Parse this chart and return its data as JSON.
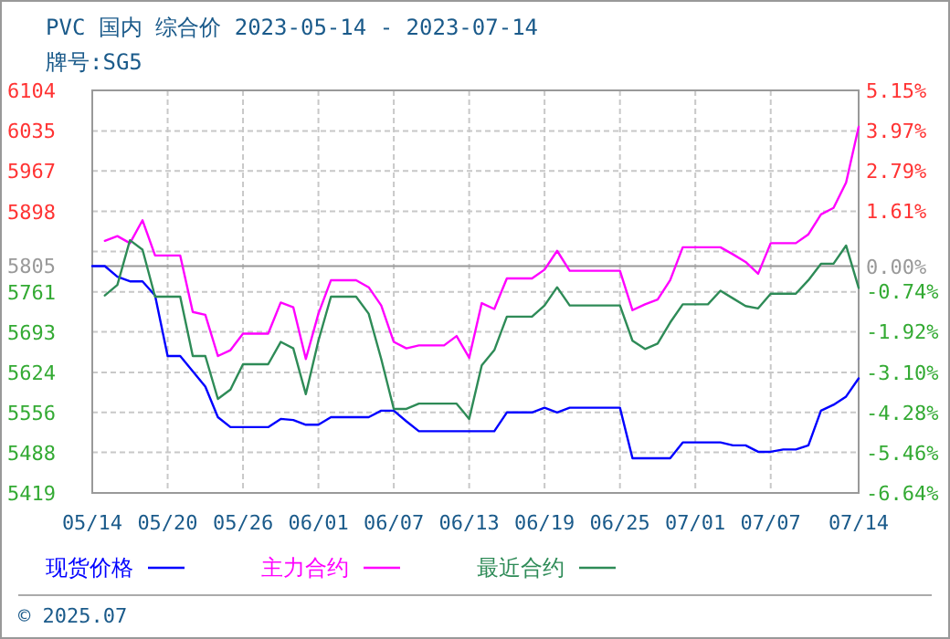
{
  "chart_data": {
    "type": "line",
    "title": "PVC 国内 综合价 2023-05-14 - 2023-07-14",
    "subtitle": "牌号:SG5",
    "xlim": [
      "2023-05-14",
      "2023-07-14"
    ],
    "xticks": [
      {
        "value": "2023-05-14",
        "label": "05/14"
      },
      {
        "value": "2023-05-20",
        "label": "05/20"
      },
      {
        "value": "2023-05-26",
        "label": "05/26"
      },
      {
        "value": "2023-06-01",
        "label": "06/01"
      },
      {
        "value": "2023-06-07",
        "label": "06/07"
      },
      {
        "value": "2023-06-13",
        "label": "06/13"
      },
      {
        "value": "2023-06-19",
        "label": "06/19"
      },
      {
        "value": "2023-06-25",
        "label": "06/25"
      },
      {
        "value": "2023-07-01",
        "label": "07/01"
      },
      {
        "value": "2023-07-07",
        "label": "07/07"
      },
      {
        "value": "2023-07-14",
        "label": "07/14"
      }
    ],
    "ylim": [
      5419,
      6104
    ],
    "yticks": [
      6104,
      6035,
      5967,
      5898,
      {
        "value": 5830,
        "label": null
      },
      5761,
      5693,
      5624,
      5556,
      5488,
      5419
    ],
    "y2lim": [
      -6.64,
      5.15
    ],
    "y2ticks": [
      {
        "value": 5.15,
        "label": "5.15%"
      },
      {
        "value": 3.97,
        "label": "3.97%"
      },
      {
        "value": 2.79,
        "label": "2.79%"
      },
      {
        "value": 1.61,
        "label": "1.61%"
      },
      {
        "value": 0,
        "label": "0.00%"
      },
      {
        "value": -0.74,
        "label": "-0.74%"
      },
      {
        "value": -1.92,
        "label": "-1.92%"
      },
      {
        "value": -3.1,
        "label": "-3.10%"
      },
      {
        "value": -4.28,
        "label": "-4.28%"
      },
      {
        "value": -5.46,
        "label": "-5.46%"
      },
      {
        "value": -6.64,
        "label": "-6.64%"
      }
    ],
    "ref_lines": [
      {
        "axis": "y",
        "value": 5805,
        "label": "5805",
        "color": "#999999"
      }
    ],
    "grid": true,
    "legend": "bottom",
    "annotations": [
      "© 2025.07"
    ],
    "series": [
      {
        "name": "现货价格",
        "color": "#0000ff",
        "x": [
          "2023-05-14",
          "2023-05-15",
          "2023-05-16",
          "2023-05-17",
          "2023-05-18",
          "2023-05-19",
          "2023-05-20",
          "2023-05-21",
          "2023-05-22",
          "2023-05-23",
          "2023-05-24",
          "2023-05-25",
          "2023-05-28",
          "2023-05-29",
          "2023-05-30",
          "2023-05-31",
          "2023-06-01",
          "2023-06-02",
          "2023-06-05",
          "2023-06-06",
          "2023-06-07",
          "2023-06-08",
          "2023-06-09",
          "2023-06-15",
          "2023-06-16",
          "2023-06-18",
          "2023-06-19",
          "2023-06-20",
          "2023-06-21",
          "2023-06-25",
          "2023-06-26",
          "2023-06-29",
          "2023-06-30",
          "2023-07-03",
          "2023-07-04",
          "2023-07-05",
          "2023-07-06",
          "2023-07-07",
          "2023-07-08",
          "2023-07-09",
          "2023-07-10",
          "2023-07-11",
          "2023-07-12",
          "2023-07-13",
          "2023-07-14"
        ],
        "values": [
          5805,
          5805,
          5787,
          5779,
          5779,
          5755,
          5652,
          5652,
          5626,
          5600,
          5548,
          5531,
          5531,
          5545,
          5543,
          5535,
          5535,
          5548,
          5548,
          5559,
          5559,
          5541,
          5524,
          5524,
          5556,
          5556,
          5564,
          5556,
          5564,
          5564,
          5478,
          5478,
          5505,
          5505,
          5500,
          5500,
          5489,
          5489,
          5493,
          5493,
          5500,
          5559,
          5569,
          5583,
          5614
        ]
      },
      {
        "name": "主力合约",
        "color": "#ff00ff",
        "x": [
          "2023-05-15",
          "2023-05-16",
          "2023-05-17",
          "2023-05-18",
          "2023-05-19",
          "2023-05-21",
          "2023-05-22",
          "2023-05-23",
          "2023-05-24",
          "2023-05-25",
          "2023-05-26",
          "2023-05-28",
          "2023-05-29",
          "2023-05-30",
          "2023-05-31",
          "2023-06-01",
          "2023-06-02",
          "2023-06-04",
          "2023-06-05",
          "2023-06-06",
          "2023-06-07",
          "2023-06-08",
          "2023-06-09",
          "2023-06-11",
          "2023-06-12",
          "2023-06-13",
          "2023-06-14",
          "2023-06-15",
          "2023-06-16",
          "2023-06-18",
          "2023-06-19",
          "2023-06-20",
          "2023-06-21",
          "2023-06-25",
          "2023-06-26",
          "2023-06-27",
          "2023-06-28",
          "2023-06-29",
          "2023-06-30",
          "2023-07-03",
          "2023-07-04",
          "2023-07-05",
          "2023-07-06",
          "2023-07-07",
          "2023-07-09",
          "2023-07-10",
          "2023-07-11",
          "2023-07-12",
          "2023-07-13",
          "2023-07-14"
        ],
        "values": [
          5848,
          5856,
          5844,
          5883,
          5823,
          5823,
          5727,
          5722,
          5652,
          5662,
          5690,
          5690,
          5743,
          5735,
          5647,
          5724,
          5781,
          5781,
          5769,
          5738,
          5676,
          5665,
          5670,
          5670,
          5686,
          5649,
          5742,
          5732,
          5784,
          5784,
          5799,
          5831,
          5797,
          5797,
          5730,
          5740,
          5748,
          5781,
          5837,
          5837,
          5825,
          5812,
          5792,
          5844,
          5844,
          5859,
          5893,
          5904,
          5947,
          6042
        ]
      },
      {
        "name": "最近合约",
        "color": "#2e8b57",
        "x": [
          "2023-05-15",
          "2023-05-16",
          "2023-05-17",
          "2023-05-18",
          "2023-05-19",
          "2023-05-21",
          "2023-05-22",
          "2023-05-23",
          "2023-05-24",
          "2023-05-25",
          "2023-05-26",
          "2023-05-28",
          "2023-05-29",
          "2023-05-30",
          "2023-05-31",
          "2023-06-01",
          "2023-06-02",
          "2023-06-04",
          "2023-06-05",
          "2023-06-06",
          "2023-06-07",
          "2023-06-08",
          "2023-06-09",
          "2023-06-12",
          "2023-06-13",
          "2023-06-14",
          "2023-06-15",
          "2023-06-16",
          "2023-06-18",
          "2023-06-19",
          "2023-06-20",
          "2023-06-21",
          "2023-06-25",
          "2023-06-26",
          "2023-06-27",
          "2023-06-28",
          "2023-06-29",
          "2023-06-30",
          "2023-07-02",
          "2023-07-03",
          "2023-07-04",
          "2023-07-05",
          "2023-07-06",
          "2023-07-07",
          "2023-07-09",
          "2023-07-10",
          "2023-07-11",
          "2023-07-12",
          "2023-07-13",
          "2023-07-14"
        ],
        "values": [
          5755,
          5773,
          5849,
          5833,
          5753,
          5753,
          5652,
          5652,
          5579,
          5595,
          5638,
          5638,
          5676,
          5665,
          5587,
          5678,
          5753,
          5753,
          5724,
          5647,
          5562,
          5562,
          5571,
          5571,
          5545,
          5636,
          5662,
          5719,
          5719,
          5738,
          5769,
          5738,
          5738,
          5678,
          5664,
          5673,
          5709,
          5740,
          5740,
          5763,
          5750,
          5737,
          5733,
          5758,
          5758,
          5781,
          5809,
          5809,
          5840,
          5768
        ]
      }
    ]
  }
}
